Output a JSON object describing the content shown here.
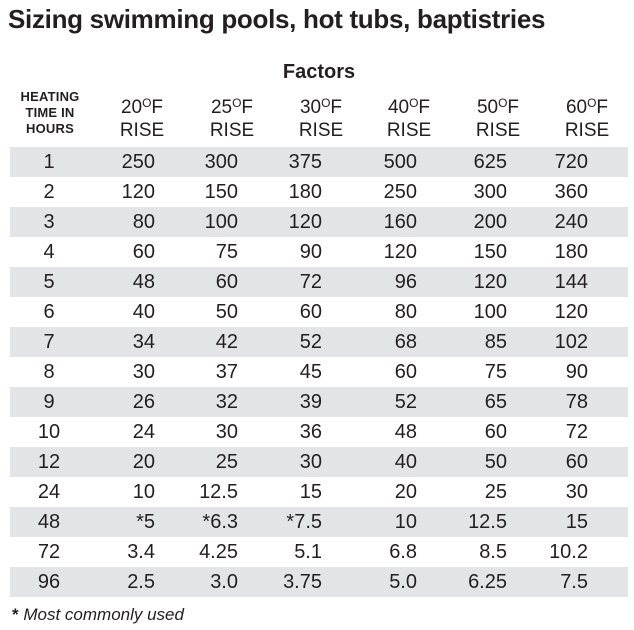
{
  "title": "Sizing swimming pools, hot tubs, baptistries",
  "table": {
    "factors_label": "Factors",
    "row_header": {
      "line1": "HEATING",
      "line2": "TIME IN",
      "line3": "HOURS"
    },
    "degree_mark": "O",
    "columns": [
      {
        "temp": "20",
        "unit": "F",
        "rise": "RISE"
      },
      {
        "temp": "25",
        "unit": "F",
        "rise": "RISE"
      },
      {
        "temp": "30",
        "unit": "F",
        "rise": "RISE"
      },
      {
        "temp": "40",
        "unit": "F",
        "rise": "RISE"
      },
      {
        "temp": "50",
        "unit": "F",
        "rise": "RISE"
      },
      {
        "temp": "60",
        "unit": "F",
        "rise": "RISE"
      }
    ],
    "rows": [
      {
        "hours": "1",
        "values": [
          "250",
          "300",
          "375",
          "500",
          "625",
          "720"
        ]
      },
      {
        "hours": "2",
        "values": [
          "120",
          "150",
          "180",
          "250",
          "300",
          "360"
        ]
      },
      {
        "hours": "3",
        "values": [
          "80",
          "100",
          "120",
          "160",
          "200",
          "240"
        ]
      },
      {
        "hours": "4",
        "values": [
          "60",
          "75",
          "90",
          "120",
          "150",
          "180"
        ]
      },
      {
        "hours": "5",
        "values": [
          "48",
          "60",
          "72",
          "96",
          "120",
          "144"
        ]
      },
      {
        "hours": "6",
        "values": [
          "40",
          "50",
          "60",
          "80",
          "100",
          "120"
        ]
      },
      {
        "hours": "7",
        "values": [
          "34",
          "42",
          "52",
          "68",
          "85",
          "102"
        ]
      },
      {
        "hours": "8",
        "values": [
          "30",
          "37",
          "45",
          "60",
          "75",
          "90"
        ]
      },
      {
        "hours": "9",
        "values": [
          "26",
          "32",
          "39",
          "52",
          "65",
          "78"
        ]
      },
      {
        "hours": "10",
        "values": [
          "24",
          "30",
          "36",
          "48",
          "60",
          "72"
        ]
      },
      {
        "hours": "12",
        "values": [
          "20",
          "25",
          "30",
          "40",
          "50",
          "60"
        ]
      },
      {
        "hours": "24",
        "values": [
          "10",
          "12.5",
          "15",
          "20",
          "25",
          "30"
        ]
      },
      {
        "hours": "48",
        "values": [
          "*5",
          "*6.3",
          "*7.5",
          "10",
          "12.5",
          "15"
        ]
      },
      {
        "hours": "72",
        "values": [
          "3.4",
          "4.25",
          "5.1",
          "6.8",
          "8.5",
          "10.2"
        ]
      },
      {
        "hours": "96",
        "values": [
          "2.5",
          "3.0",
          "3.75",
          "5.0",
          "6.25",
          "7.5"
        ]
      }
    ]
  },
  "footnote": {
    "marker": "*",
    "text": "Most commonly used"
  },
  "colors": {
    "ink": "#231f20",
    "stripe": "#e3e4e5",
    "background": "#ffffff"
  }
}
